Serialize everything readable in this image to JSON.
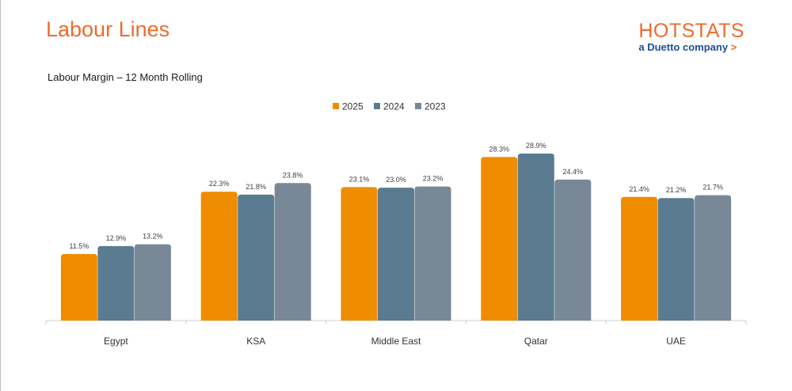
{
  "header": {
    "title": "Labour Lines",
    "brand_main": "HOTSTATS",
    "brand_sub": "a Duetto company",
    "brand_arrow": ">"
  },
  "colors": {
    "accent": "#ec6b2d",
    "brand_blue": "#1e4d9a",
    "s2025": "#ef8c00",
    "s2024": "#5b7b91",
    "s2023": "#788896"
  },
  "chart_data": {
    "type": "bar",
    "title": "Labour Margin – 12 Month Rolling",
    "categories": [
      "Egypt",
      "KSA",
      "Middle East",
      "Qatar",
      "UAE"
    ],
    "series": [
      {
        "name": "2025",
        "values": [
          11.5,
          22.3,
          23.1,
          28.3,
          21.4
        ],
        "labels": [
          "11.5%",
          "22.3%",
          "23.1%",
          "28.3%",
          "21.4%"
        ],
        "color": "#ef8c00"
      },
      {
        "name": "2024",
        "values": [
          12.9,
          21.8,
          23.0,
          28.9,
          21.2
        ],
        "labels": [
          "12.9%",
          "21.8%",
          "23.0%",
          "28.9%",
          "21.2%"
        ],
        "color": "#5b7b91"
      },
      {
        "name": "2023",
        "values": [
          13.2,
          23.8,
          23.2,
          24.4,
          21.7
        ],
        "labels": [
          "13.2%",
          "23.8%",
          "23.2%",
          "24.4%",
          "21.7%"
        ],
        "color": "#788896"
      }
    ],
    "ylim": [
      0,
      30
    ],
    "grid": false,
    "legend": "top-center",
    "xlabel": "",
    "ylabel": ""
  }
}
